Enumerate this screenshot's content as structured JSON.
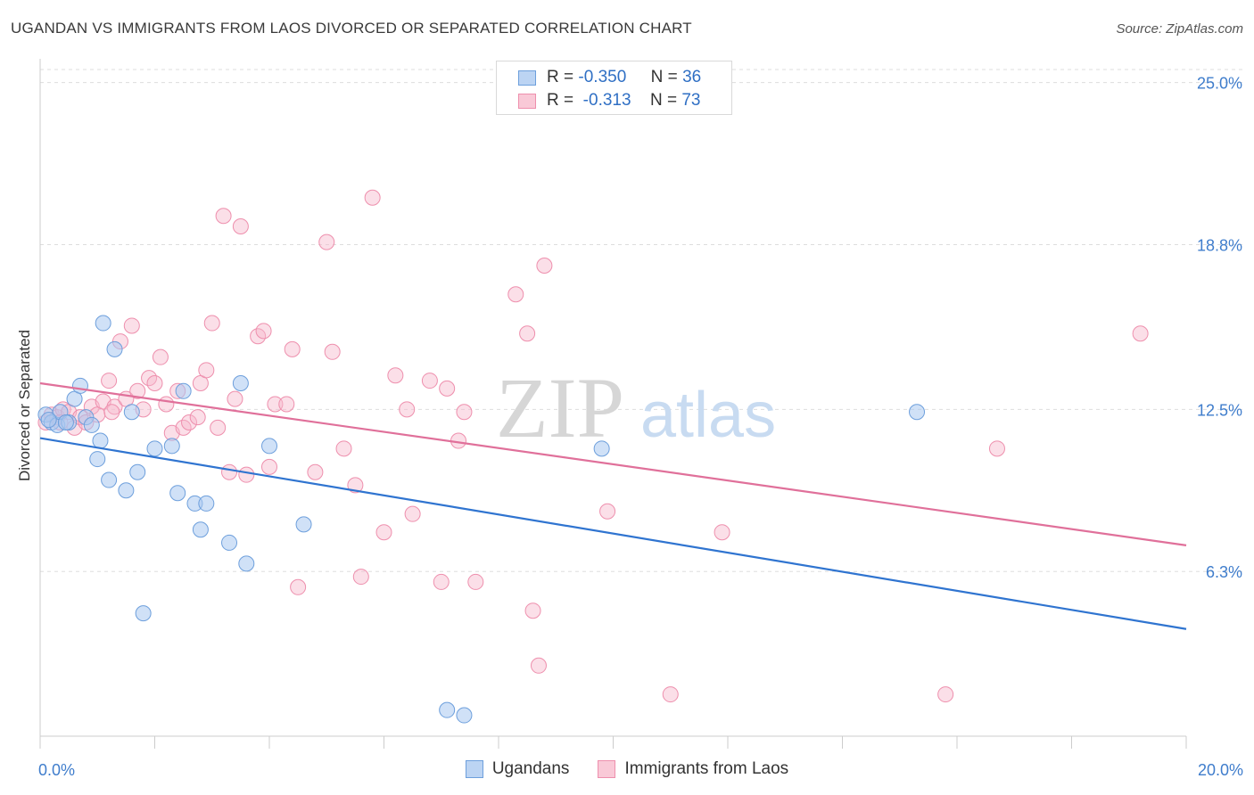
{
  "header": {
    "title": "UGANDAN VS IMMIGRANTS FROM LAOS DIVORCED OR SEPARATED CORRELATION CHART",
    "source": "Source: ZipAtlas.com"
  },
  "watermark": {
    "zip": "ZIP",
    "atlas": "atlas"
  },
  "legend_top": {
    "rows": [
      {
        "r_label": "R =",
        "r_value": "-0.350",
        "n_label": "N =",
        "n_value": "36"
      },
      {
        "r_label": "R =",
        "r_value": "-0.313",
        "n_label": "N =",
        "n_value": "73"
      }
    ]
  },
  "legend_bottom": {
    "series_a": "Ugandans",
    "series_b": "Immigrants from Laos"
  },
  "colors": {
    "blue_fill": "#a9c8f0",
    "blue_stroke": "#6d9fdc",
    "blue_line": "#2f74d0",
    "pink_fill": "#f7b8cb",
    "pink_stroke": "#ee8fad",
    "pink_line": "#e0709a",
    "tick_label": "#3f7dcc",
    "grid": "#dddddd"
  },
  "chart_data": {
    "type": "scatter",
    "title": "UGANDAN VS IMMIGRANTS FROM LAOS DIVORCED OR SEPARATED CORRELATION CHART",
    "xlabel": "",
    "ylabel": "Divorced or Separated",
    "xlim": [
      0,
      20
    ],
    "ylim": [
      0,
      25.5
    ],
    "x_tick_labels": [
      "0.0%",
      "20.0%"
    ],
    "y_ticks": [
      6.3,
      12.5,
      18.8,
      25.0
    ],
    "y_tick_labels": [
      "6.3%",
      "12.5%",
      "18.8%",
      "25.0%"
    ],
    "grid": "horizontal dashed",
    "legend": "top-center",
    "series": [
      {
        "name": "Ugandans",
        "R": -0.35,
        "N": 36,
        "trend": {
          "x": [
            0,
            20
          ],
          "y": [
            11.4,
            4.1
          ]
        },
        "points": [
          [
            0.1,
            12.3
          ],
          [
            0.2,
            12.0
          ],
          [
            0.3,
            11.9
          ],
          [
            0.35,
            12.4
          ],
          [
            0.5,
            12.0
          ],
          [
            0.6,
            12.9
          ],
          [
            0.7,
            13.4
          ],
          [
            0.8,
            12.2
          ],
          [
            0.9,
            11.9
          ],
          [
            1.0,
            10.6
          ],
          [
            1.1,
            15.8
          ],
          [
            1.05,
            11.3
          ],
          [
            1.2,
            9.8
          ],
          [
            1.3,
            14.8
          ],
          [
            1.5,
            9.4
          ],
          [
            1.6,
            12.4
          ],
          [
            1.7,
            10.1
          ],
          [
            1.8,
            4.7
          ],
          [
            2.0,
            11.0
          ],
          [
            2.3,
            11.1
          ],
          [
            2.4,
            9.3
          ],
          [
            2.5,
            13.2
          ],
          [
            2.7,
            8.9
          ],
          [
            2.8,
            7.9
          ],
          [
            2.9,
            8.9
          ],
          [
            3.3,
            7.4
          ],
          [
            3.5,
            13.5
          ],
          [
            3.6,
            6.6
          ],
          [
            4.0,
            11.1
          ],
          [
            4.6,
            8.1
          ],
          [
            7.1,
            1.0
          ],
          [
            7.4,
            0.8
          ],
          [
            9.8,
            11.0
          ],
          [
            15.3,
            12.4
          ],
          [
            0.15,
            12.1
          ],
          [
            0.45,
            12.0
          ]
        ]
      },
      {
        "name": "Immigrants from Laos",
        "R": -0.313,
        "N": 73,
        "trend": {
          "x": [
            0,
            20
          ],
          "y": [
            13.5,
            7.3
          ]
        },
        "points": [
          [
            0.1,
            12.0
          ],
          [
            0.2,
            12.3
          ],
          [
            0.3,
            12.2
          ],
          [
            0.4,
            12.5
          ],
          [
            0.5,
            12.4
          ],
          [
            0.6,
            11.8
          ],
          [
            0.7,
            12.2
          ],
          [
            0.8,
            12.0
          ],
          [
            0.9,
            12.6
          ],
          [
            1.0,
            12.3
          ],
          [
            1.1,
            12.8
          ],
          [
            1.2,
            13.6
          ],
          [
            1.3,
            12.6
          ],
          [
            1.4,
            15.1
          ],
          [
            1.5,
            12.9
          ],
          [
            1.6,
            15.7
          ],
          [
            1.7,
            13.2
          ],
          [
            1.8,
            12.5
          ],
          [
            1.9,
            13.7
          ],
          [
            2.0,
            13.5
          ],
          [
            2.1,
            14.5
          ],
          [
            2.2,
            12.7
          ],
          [
            2.3,
            11.6
          ],
          [
            2.4,
            13.2
          ],
          [
            2.5,
            11.8
          ],
          [
            2.6,
            12.0
          ],
          [
            2.8,
            13.5
          ],
          [
            2.9,
            14.0
          ],
          [
            3.0,
            15.8
          ],
          [
            3.1,
            11.8
          ],
          [
            3.2,
            19.9
          ],
          [
            3.3,
            10.1
          ],
          [
            3.4,
            12.9
          ],
          [
            3.5,
            19.5
          ],
          [
            3.6,
            10.0
          ],
          [
            3.8,
            15.3
          ],
          [
            3.9,
            15.5
          ],
          [
            4.0,
            10.3
          ],
          [
            4.1,
            12.7
          ],
          [
            4.3,
            12.7
          ],
          [
            4.4,
            14.8
          ],
          [
            4.5,
            5.7
          ],
          [
            4.8,
            10.1
          ],
          [
            5.0,
            18.9
          ],
          [
            5.1,
            14.7
          ],
          [
            5.3,
            11.0
          ],
          [
            5.5,
            9.6
          ],
          [
            5.6,
            6.1
          ],
          [
            5.8,
            20.6
          ],
          [
            6.0,
            7.8
          ],
          [
            6.2,
            13.8
          ],
          [
            6.4,
            12.5
          ],
          [
            6.5,
            8.5
          ],
          [
            6.8,
            13.6
          ],
          [
            7.0,
            5.9
          ],
          [
            7.1,
            13.3
          ],
          [
            7.3,
            11.3
          ],
          [
            7.4,
            12.4
          ],
          [
            7.6,
            5.9
          ],
          [
            8.3,
            16.9
          ],
          [
            8.5,
            15.4
          ],
          [
            8.6,
            4.8
          ],
          [
            8.7,
            2.7
          ],
          [
            8.8,
            18.0
          ],
          [
            9.9,
            8.6
          ],
          [
            11.0,
            1.6
          ],
          [
            11.9,
            7.8
          ],
          [
            15.8,
            1.6
          ],
          [
            16.7,
            11.0
          ],
          [
            19.2,
            15.4
          ],
          [
            1.25,
            12.4
          ],
          [
            2.75,
            12.2
          ],
          [
            0.35,
            12.0
          ]
        ]
      }
    ]
  }
}
